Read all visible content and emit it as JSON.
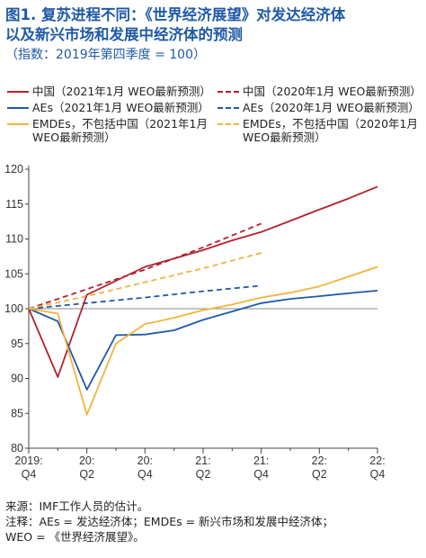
{
  "header": {
    "title_line1": "图1. 复苏进程不同：《世界经济展望》对发达经济体",
    "title_line2": "以及新兴市场和发展中经济体的预测",
    "subtitle": "（指数：2019年第四季度 = 100）"
  },
  "colors": {
    "china": "#b5202e",
    "aes": "#1f5aa6",
    "emdes": "#f0b43c",
    "reference": "#888888",
    "axis": "#444444"
  },
  "chart_data": {
    "type": "line",
    "ylim": [
      80,
      120
    ],
    "yticks": [
      80,
      85,
      90,
      95,
      100,
      105,
      110,
      115,
      120
    ],
    "xlim": [
      0,
      12
    ],
    "xticks": [
      {
        "x": 0,
        "line1": "2019:",
        "line2": "Q4"
      },
      {
        "x": 2,
        "line1": "20:",
        "line2": "Q2"
      },
      {
        "x": 4,
        "line1": "20:",
        "line2": "Q4"
      },
      {
        "x": 6,
        "line1": "21:",
        "line2": "Q2"
      },
      {
        "x": 8,
        "line1": "21:",
        "line2": "Q4"
      },
      {
        "x": 10,
        "line1": "22:",
        "line2": "Q2"
      },
      {
        "x": 12,
        "line1": "22:",
        "line2": "Q4"
      }
    ],
    "reference_line": 100,
    "series": [
      {
        "key": "china_2021",
        "name": "中国（2021年1月 WEO最新预测）",
        "color": "#b5202e",
        "dashed": false,
        "x": [
          0,
          1,
          2,
          3,
          4,
          5,
          6,
          7,
          8,
          9,
          10,
          11,
          12
        ],
        "y": [
          100,
          90.2,
          102.0,
          104.0,
          106.0,
          107.2,
          108.4,
          109.8,
          111.0,
          112.6,
          114.2,
          115.8,
          117.5
        ]
      },
      {
        "key": "aes_2021",
        "name": "AEs（2021年1月 WEO最新预测）",
        "color": "#1f5aa6",
        "dashed": false,
        "x": [
          0,
          1,
          2,
          3,
          4,
          5,
          6,
          7,
          8,
          9,
          10,
          11,
          12
        ],
        "y": [
          100,
          98.2,
          88.4,
          96.2,
          96.3,
          96.9,
          98.4,
          99.6,
          100.8,
          101.4,
          101.8,
          102.2,
          102.6
        ]
      },
      {
        "key": "emdes_2021",
        "name": "EMDEs，不包括中国（2021年1月 WEO最新预测）",
        "color": "#f0b43c",
        "dashed": false,
        "x": [
          0,
          1,
          2,
          3,
          4,
          5,
          6,
          7,
          8,
          9,
          10,
          11,
          12
        ],
        "y": [
          100,
          99.3,
          84.8,
          95.0,
          97.8,
          98.7,
          99.8,
          100.6,
          101.6,
          102.3,
          103.2,
          104.6,
          106.0
        ]
      },
      {
        "key": "china_2020",
        "name": "中国（2020年1月 WEO最新预测）",
        "color": "#b5202e",
        "dashed": true,
        "x": [
          0,
          2,
          4,
          6,
          8
        ],
        "y": [
          100,
          102.8,
          105.6,
          108.8,
          112.2
        ]
      },
      {
        "key": "aes_2020",
        "name": "AEs（2020年1月 WEO最新预测）",
        "color": "#1f5aa6",
        "dashed": true,
        "x": [
          0,
          2,
          4,
          6,
          8
        ],
        "y": [
          100,
          100.8,
          101.6,
          102.5,
          103.3
        ]
      },
      {
        "key": "emdes_2020",
        "name": "EMDEs，不包括中国（2020年1月 WEO最新预测）",
        "color": "#f0b43c",
        "dashed": true,
        "x": [
          0,
          2,
          4,
          6,
          8
        ],
        "y": [
          100,
          101.8,
          103.8,
          105.8,
          108.0
        ]
      }
    ]
  },
  "legend": {
    "china_2021": "中国（2021年1月 WEO最新预测）",
    "aes_2021": "AEs（2021年1月 WEO最新预测）",
    "emdes_2021_line1": "EMDEs，不包括中国（2021年1月",
    "emdes_2021_line2": "WEO最新预测）",
    "china_2020": "中国（2020年1月 WEO最新预测）",
    "aes_2020": "AEs（2020年1月 WEO最新预测）",
    "emdes_2020_line1": "EMDEs，不包括中国（2020年1月",
    "emdes_2020_line2": "WEO最新预测）"
  },
  "notes": {
    "source": "来源：IMF工作人员的估计。",
    "note1": "注释：AEs = 发达经济体；EMDEs = 新兴市场和发展中经济体；",
    "note2": "WEO = 《世界经济展望》。"
  }
}
